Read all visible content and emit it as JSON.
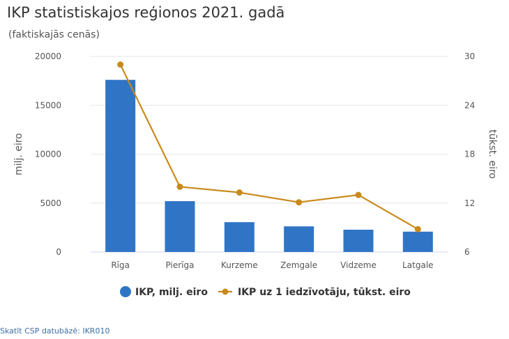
{
  "title": "IKP statistiskajos reģionos 2021. gadā",
  "subtitle": "(faktiskajās cenās)",
  "footer_link": "Skatīt CSP datubāzē: IKR010",
  "colors": {
    "bar": "#3075c5",
    "line": "#c98a1c",
    "grid": "#e6e6e6",
    "axis": "#ccd6eb"
  },
  "chart_data": {
    "type": "bar",
    "categories": [
      "Rīga",
      "Pierīga",
      "Kurzeme",
      "Zemgale",
      "Vidzeme",
      "Latgale"
    ],
    "series": [
      {
        "name": "IKP, milj. eiro",
        "type": "bar",
        "axis": "left",
        "values": [
          17600,
          5200,
          3050,
          2620,
          2280,
          2080
        ]
      },
      {
        "name": "IKP uz 1 iedzīvotāju, tūkst. eiro",
        "type": "line",
        "axis": "right",
        "values": [
          29.0,
          14.0,
          13.3,
          12.1,
          13.0,
          8.8
        ]
      }
    ],
    "ylabel": "milj. eiro",
    "ylim": [
      0,
      20000
    ],
    "yticks": [
      "0",
      "5000",
      "10000",
      "15000",
      "20000"
    ],
    "y2label": "tūkst. eiro",
    "y2lim": [
      6,
      30
    ],
    "y2ticks": [
      "6",
      "12",
      "18",
      "24",
      "30"
    ],
    "grid": true,
    "legend": "bottom"
  }
}
